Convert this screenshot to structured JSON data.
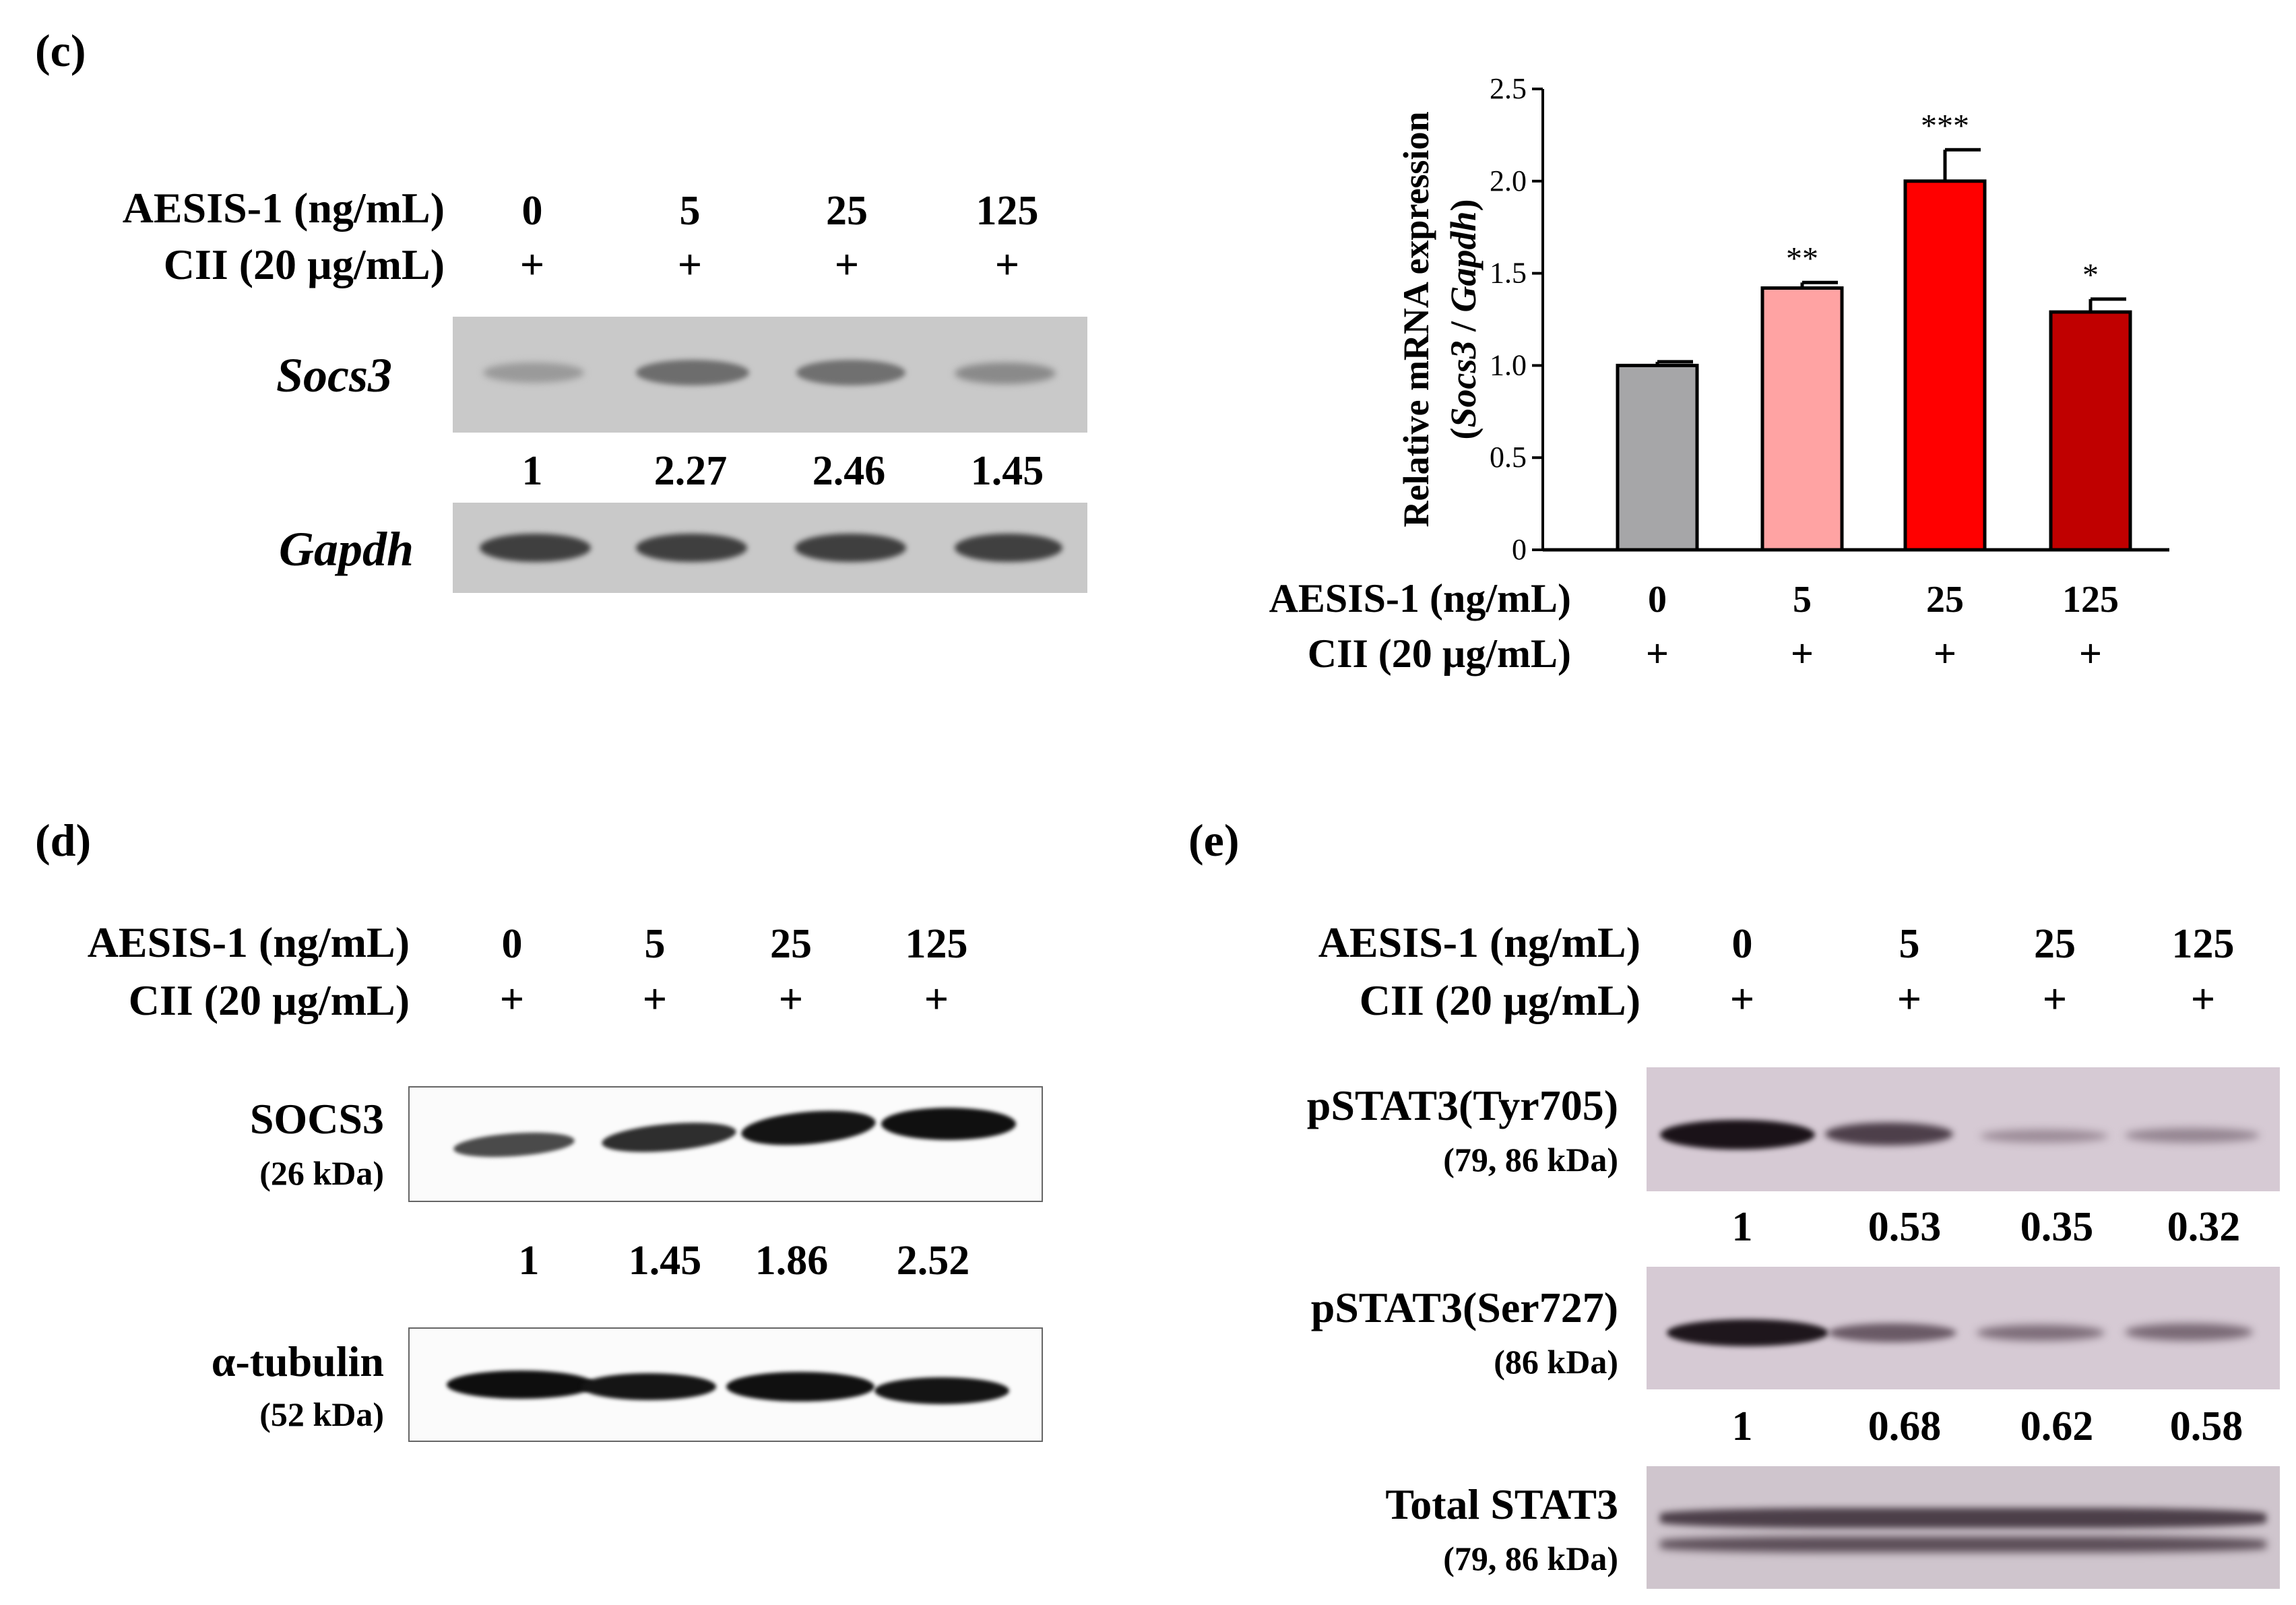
{
  "panel_c": {
    "label": "(c)",
    "aesis_label": "AESIS-1 (ng/mL)",
    "cii_label": "CII (20 µg/mL)",
    "doses": [
      "0",
      "5",
      "25",
      "125"
    ],
    "cii": [
      "+",
      "+",
      "+",
      "+"
    ],
    "socs3_label": "Socs3",
    "gapdh_label": "Gapdh",
    "socs3_quant": [
      "1",
      "2.27",
      "2.46",
      "1.45"
    ]
  },
  "panel_d": {
    "label": "(d)",
    "aesis_label": "AESIS-1 (ng/mL)",
    "cii_label": "CII (20 µg/mL)",
    "doses": [
      "0",
      "5",
      "25",
      "125"
    ],
    "cii": [
      "+",
      "+",
      "+",
      "+"
    ],
    "socs3_label": "SOCS3",
    "socs3_kda": "(26 kDa)",
    "socs3_quant": [
      "1",
      "1.45",
      "1.86",
      "2.52"
    ],
    "tubulin_label": "α-tubulin",
    "tubulin_kda": "(52 kDa)"
  },
  "panel_e": {
    "label": "(e)",
    "aesis_label": "AESIS-1 (ng/mL)",
    "cii_label": "CII (20 µg/mL)",
    "doses": [
      "0",
      "5",
      "25",
      "125"
    ],
    "cii": [
      "+",
      "+",
      "+",
      "+"
    ],
    "tyr_label": "pSTAT3(Tyr705)",
    "tyr_kda": "(79, 86 kDa)",
    "tyr_quant": [
      "1",
      "0.53",
      "0.35",
      "0.32"
    ],
    "ser_label": "pSTAT3(Ser727)",
    "ser_kda": "(86 kDa)",
    "ser_quant": [
      "1",
      "0.68",
      "0.62",
      "0.58"
    ],
    "total_label": "Total STAT3",
    "total_kda": "(79, 86 kDa)"
  },
  "chart_data": {
    "type": "bar",
    "title": "",
    "ylabel_line1": "Relative mRNA expression",
    "ylabel_line2_open": "(",
    "ylabel_line2_a": "Socs3",
    "ylabel_line2_sep": " / ",
    "ylabel_line2_b": "Gapdh",
    "ylabel_line2_close": ")",
    "xlabel": "",
    "categories": [
      "0",
      "5",
      "25",
      "125"
    ],
    "values": [
      1.0,
      1.42,
      2.0,
      1.29
    ],
    "errors": [
      0.02,
      0.03,
      0.17,
      0.07
    ],
    "significance": [
      "",
      "**",
      "***",
      "*"
    ],
    "colors": [
      "#a6a6a8",
      "#ffa3a3",
      "#ff0000",
      "#c00000"
    ],
    "ylim": [
      0,
      2.5
    ],
    "yticks": [
      0,
      0.5,
      1.0,
      1.5,
      2.0,
      2.5
    ],
    "ytick_labels": [
      "0",
      "0.5",
      "1.0",
      "1.5",
      "2.0",
      "2.5"
    ],
    "row_label_aesis": "AESIS-1 (ng/mL)",
    "row_label_cii": "CII (20 µg/mL)",
    "cii": [
      "+",
      "+",
      "+",
      "+"
    ]
  }
}
